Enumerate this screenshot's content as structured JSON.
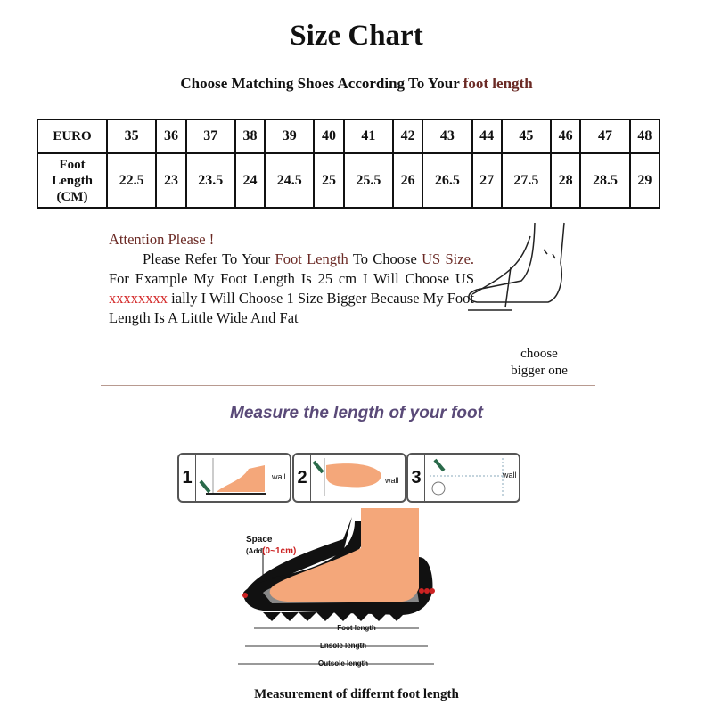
{
  "title": "Size Chart",
  "subtitle": {
    "prefix": "Choose Matching Shoes According To Your",
    "highlight": "foot length"
  },
  "table": {
    "row1_header": "EURO",
    "row2_header": [
      "Foot",
      "Length",
      "(CM)"
    ],
    "euro": [
      "35",
      "36",
      "37",
      "38",
      "39",
      "40",
      "41",
      "42",
      "43",
      "44",
      "45",
      "46",
      "47",
      "48"
    ],
    "foot_length_cm": [
      "22.5",
      "23",
      "23.5",
      "24",
      "24.5",
      "25",
      "25.5",
      "26",
      "26.5",
      "27",
      "27.5",
      "28",
      "28.5",
      "29"
    ]
  },
  "attention": {
    "heading": "Attention Please !",
    "t1": "Please Refer To Your",
    "h1": "Foot Length",
    "t2": "To Choose",
    "h2": "US Size.",
    "t3": "For Example My Foot Length Is 25 cm I Will Choose US",
    "redacted": "xxxxxxxx",
    "t4": "ially I Will Choose 1 Size Bigger Because My Foot Length Is A Little Wide And Fat"
  },
  "choose_note": [
    "choose",
    "bigger one"
  ],
  "measure_heading": "Measure the length of your foot",
  "steps": [
    {
      "num": "1",
      "label": "wall"
    },
    {
      "num": "2",
      "label": "wall"
    },
    {
      "num": "3",
      "label": "wall"
    }
  ],
  "diagram": {
    "space": "Space",
    "add_prefix": "(Add",
    "add_value": "(0~1cm)",
    "foot_length": "Foot length",
    "insole_length": "Lnsole length",
    "outsole_length": "Outsole length"
  },
  "footer": "Measurement of differnt foot length",
  "colors": {
    "brown": "#6b2a25",
    "red": "#d42a2a",
    "heading_purple": "#5a4a78",
    "skin": "#f4a77a"
  }
}
